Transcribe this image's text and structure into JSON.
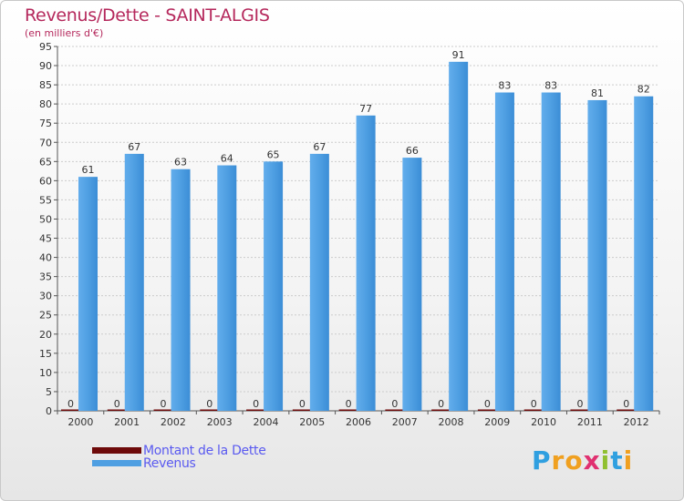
{
  "title": "Revenus/Dette - SAINT-ALGIS",
  "subtitle": "(en milliers d'€)",
  "legend": [
    {
      "label": "Montant de la Dette",
      "color": "#6e0a0a"
    },
    {
      "label": "Revenus",
      "color": "#4f9fe2"
    }
  ],
  "logo": {
    "letters": [
      "P",
      "r",
      "o",
      "x",
      "i",
      "t",
      "i"
    ],
    "colors": [
      "#2f9fe0",
      "#f0a020",
      "#f0a020",
      "#e03070",
      "#90c030",
      "#30a0e0",
      "#f0a020"
    ]
  },
  "colors": {
    "revenus": "#4f9fe2",
    "dette": "#6e0a0a",
    "axis": "#555555",
    "grid": "#cccccc",
    "title": "#b5285c"
  },
  "chart_data": {
    "type": "bar",
    "title": "Revenus/Dette - SAINT-ALGIS",
    "subtitle": "(en milliers d'€)",
    "categories": [
      "2000",
      "2001",
      "2002",
      "2003",
      "2004",
      "2005",
      "2006",
      "2007",
      "2008",
      "2009",
      "2010",
      "2011",
      "2012"
    ],
    "series": [
      {
        "name": "Montant de la Dette",
        "values": [
          0,
          0,
          0,
          0,
          0,
          0,
          0,
          0,
          0,
          0,
          0,
          0,
          0
        ]
      },
      {
        "name": "Revenus",
        "values": [
          61,
          67,
          63,
          64,
          65,
          67,
          77,
          66,
          91,
          83,
          83,
          81,
          82
        ]
      }
    ],
    "ylim": [
      0,
      95
    ],
    "yticks": [
      0,
      5,
      10,
      15,
      20,
      25,
      30,
      35,
      40,
      45,
      50,
      55,
      60,
      65,
      70,
      75,
      80,
      85,
      90,
      95
    ],
    "grid": true,
    "legend_position": "bottom-left"
  }
}
